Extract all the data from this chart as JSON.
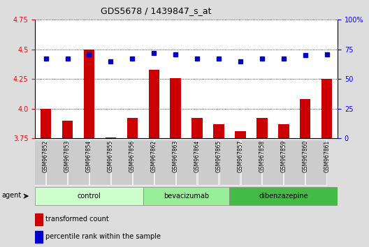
{
  "title": "GDS5678 / 1439847_s_at",
  "samples": [
    "GSM967852",
    "GSM967853",
    "GSM967854",
    "GSM967855",
    "GSM967856",
    "GSM967862",
    "GSM967863",
    "GSM967864",
    "GSM967865",
    "GSM967857",
    "GSM967858",
    "GSM967859",
    "GSM967860",
    "GSM967861"
  ],
  "transformed_counts": [
    4.0,
    3.9,
    4.5,
    3.76,
    3.92,
    4.33,
    4.26,
    3.92,
    3.87,
    3.81,
    3.92,
    3.87,
    4.08,
    4.25
  ],
  "percentile_ranks": [
    67,
    67,
    71,
    65,
    67,
    72,
    71,
    67,
    67,
    65,
    67,
    67,
    70,
    71
  ],
  "groups": [
    {
      "label": "control",
      "start": 0,
      "end": 4,
      "color": "#ccffcc"
    },
    {
      "label": "bevacizumab",
      "start": 5,
      "end": 8,
      "color": "#99ee99"
    },
    {
      "label": "dibenzazepine",
      "start": 9,
      "end": 13,
      "color": "#44bb44"
    }
  ],
  "ylim_left": [
    3.75,
    4.75
  ],
  "ylim_right": [
    0,
    100
  ],
  "bar_color": "#cc0000",
  "dot_color": "#0000cc",
  "fig_bg_color": "#dddddd",
  "plot_bg_color": "#ffffff",
  "agent_label": "agent",
  "legend_bar_label": "transformed count",
  "legend_dot_label": "percentile rank within the sample",
  "left_yticks": [
    3.75,
    4.0,
    4.25,
    4.5,
    4.75
  ],
  "right_yticks": [
    0,
    25,
    50,
    75,
    100
  ],
  "right_yticklabels": [
    "0",
    "25",
    "50",
    "75",
    "100%"
  ]
}
